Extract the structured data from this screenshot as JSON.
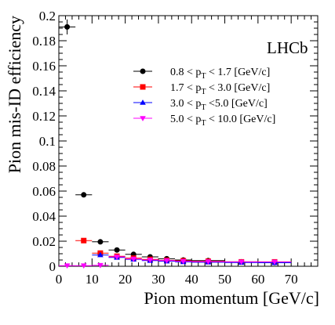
{
  "chart_data": {
    "type": "scatter",
    "xlabel": "Pion momentum [GeV/c]",
    "ylabel": "Pion mis-ID efficiency",
    "xlim": [
      0,
      78
    ],
    "ylim": [
      0,
      0.2
    ],
    "x_ticks": [
      0,
      10,
      20,
      30,
      40,
      50,
      60,
      70
    ],
    "y_ticks": [
      0,
      0.02,
      0.04,
      0.06,
      0.08,
      0.1,
      0.12,
      0.14,
      0.16,
      0.18,
      0.2
    ],
    "x_tick_labels": [
      "0",
      "10",
      "20",
      "30",
      "40",
      "50",
      "60",
      "70"
    ],
    "y_tick_labels": [
      "0",
      "0.02",
      "0.04",
      "0.06",
      "0.08",
      "0.1",
      "0.12",
      "0.14",
      "0.16",
      "0.18",
      "0.2"
    ],
    "grid": false,
    "legend_position": "top-right",
    "annotation": "LHCb",
    "series": [
      {
        "name": "0.8 < p_T < 1.7 [GeV/c]",
        "label_prefix": "0.8 < p",
        "label_sub": "T",
        "label_suffix": " < 1.7 [GeV/c]",
        "color": "#000000",
        "marker": "circle",
        "points": [
          {
            "x": 2.5,
            "xlo": 0,
            "xhi": 5,
            "y": 0.191,
            "yerr": 0.006
          },
          {
            "x": 7.5,
            "xlo": 5,
            "xhi": 10,
            "y": 0.057,
            "yerr": 0.001
          },
          {
            "x": 12.5,
            "xlo": 10,
            "xhi": 15,
            "y": 0.0195,
            "yerr": 0.0007
          },
          {
            "x": 17.5,
            "xlo": 15,
            "xhi": 20,
            "y": 0.013,
            "yerr": 0.0006
          },
          {
            "x": 22.5,
            "xlo": 20,
            "xhi": 25,
            "y": 0.0095,
            "yerr": 0.0005
          },
          {
            "x": 27.5,
            "xlo": 25,
            "xhi": 30,
            "y": 0.0075,
            "yerr": 0.0004
          },
          {
            "x": 32.5,
            "xlo": 30,
            "xhi": 35,
            "y": 0.006,
            "yerr": 0.0004
          },
          {
            "x": 37.5,
            "xlo": 35,
            "xhi": 40,
            "y": 0.005,
            "yerr": 0.0004
          },
          {
            "x": 45,
            "xlo": 40,
            "xhi": 50,
            "y": 0.0045,
            "yerr": 0.0003
          },
          {
            "x": 55,
            "xlo": 50,
            "xhi": 60,
            "y": 0.0035,
            "yerr": 0.0003
          },
          {
            "x": 65,
            "xlo": 60,
            "xhi": 70,
            "y": 0.003,
            "yerr": 0.0003
          }
        ]
      },
      {
        "name": "1.7 < p_T < 3.0 [GeV/c]",
        "label_prefix": "1.7 < p",
        "label_sub": "T",
        "label_suffix": " < 3.0 [GeV/c]",
        "color": "#ff0000",
        "marker": "square",
        "points": [
          {
            "x": 7.5,
            "xlo": 5,
            "xhi": 10,
            "y": 0.0205,
            "yerr": 0.0008
          },
          {
            "x": 12.5,
            "xlo": 10,
            "xhi": 15,
            "y": 0.0105,
            "yerr": 0.0005
          },
          {
            "x": 17.5,
            "xlo": 15,
            "xhi": 20,
            "y": 0.008,
            "yerr": 0.0004
          },
          {
            "x": 22.5,
            "xlo": 20,
            "xhi": 25,
            "y": 0.0065,
            "yerr": 0.0004
          },
          {
            "x": 27.5,
            "xlo": 25,
            "xhi": 30,
            "y": 0.0055,
            "yerr": 0.0003
          },
          {
            "x": 32.5,
            "xlo": 30,
            "xhi": 35,
            "y": 0.0048,
            "yerr": 0.0003
          },
          {
            "x": 37.5,
            "xlo": 35,
            "xhi": 40,
            "y": 0.0044,
            "yerr": 0.0003
          },
          {
            "x": 45,
            "xlo": 40,
            "xhi": 50,
            "y": 0.004,
            "yerr": 0.0003
          },
          {
            "x": 55,
            "xlo": 50,
            "xhi": 60,
            "y": 0.0035,
            "yerr": 0.0003
          },
          {
            "x": 65,
            "xlo": 60,
            "xhi": 70,
            "y": 0.0035,
            "yerr": 0.0003
          }
        ]
      },
      {
        "name": "3.0 < p_T <5.0 [GeV/c]",
        "label_prefix": "3.0 < p",
        "label_sub": "T",
        "label_suffix": " <5.0 [GeV/c]",
        "color": "#0000ff",
        "marker": "triangle-up",
        "points": [
          {
            "x": 12.5,
            "xlo": 10,
            "xhi": 15,
            "y": 0.009,
            "yerr": 0.0006
          },
          {
            "x": 17.5,
            "xlo": 15,
            "xhi": 20,
            "y": 0.007,
            "yerr": 0.0005
          },
          {
            "x": 22.5,
            "xlo": 20,
            "xhi": 25,
            "y": 0.0055,
            "yerr": 0.0004
          },
          {
            "x": 27.5,
            "xlo": 25,
            "xhi": 30,
            "y": 0.0045,
            "yerr": 0.0004
          },
          {
            "x": 32.5,
            "xlo": 30,
            "xhi": 35,
            "y": 0.004,
            "yerr": 0.0003
          },
          {
            "x": 37.5,
            "xlo": 35,
            "xhi": 40,
            "y": 0.0035,
            "yerr": 0.0003
          },
          {
            "x": 45,
            "xlo": 40,
            "xhi": 50,
            "y": 0.0032,
            "yerr": 0.0003
          },
          {
            "x": 55,
            "xlo": 50,
            "xhi": 60,
            "y": 0.003,
            "yerr": 0.0003
          },
          {
            "x": 65,
            "xlo": 60,
            "xhi": 70,
            "y": 0.0028,
            "yerr": 0.0003
          }
        ]
      },
      {
        "name": "5.0 < p_T < 10.0 [GeV/c]",
        "label_prefix": "5.0 < p",
        "label_sub": "T",
        "label_suffix": " < 10.0 [GeV/c]",
        "color": "#ff00ff",
        "marker": "triangle-down",
        "points": [
          {
            "x": 2.5,
            "xlo": 0,
            "xhi": 5,
            "y": 0.0005,
            "yerr": 0.0003
          },
          {
            "x": 7.5,
            "xlo": 5,
            "xhi": 10,
            "y": 0.0005,
            "yerr": 0.0003
          },
          {
            "x": 12.5,
            "xlo": 10,
            "xhi": 15,
            "y": 0.0008,
            "yerr": 0.0003
          },
          {
            "x": 17.5,
            "xlo": 15,
            "xhi": 20,
            "y": 0.0075,
            "yerr": 0.0005
          },
          {
            "x": 22.5,
            "xlo": 20,
            "xhi": 25,
            "y": 0.0058,
            "yerr": 0.0004
          },
          {
            "x": 27.5,
            "xlo": 25,
            "xhi": 30,
            "y": 0.005,
            "yerr": 0.0004
          },
          {
            "x": 32.5,
            "xlo": 30,
            "xhi": 35,
            "y": 0.0045,
            "yerr": 0.0003
          },
          {
            "x": 37.5,
            "xlo": 35,
            "xhi": 40,
            "y": 0.004,
            "yerr": 0.0003
          },
          {
            "x": 45,
            "xlo": 40,
            "xhi": 50,
            "y": 0.0037,
            "yerr": 0.0003
          },
          {
            "x": 55,
            "xlo": 50,
            "xhi": 60,
            "y": 0.0035,
            "yerr": 0.0003
          },
          {
            "x": 65,
            "xlo": 60,
            "xhi": 70,
            "y": 0.0035,
            "yerr": 0.0003
          }
        ]
      }
    ]
  }
}
